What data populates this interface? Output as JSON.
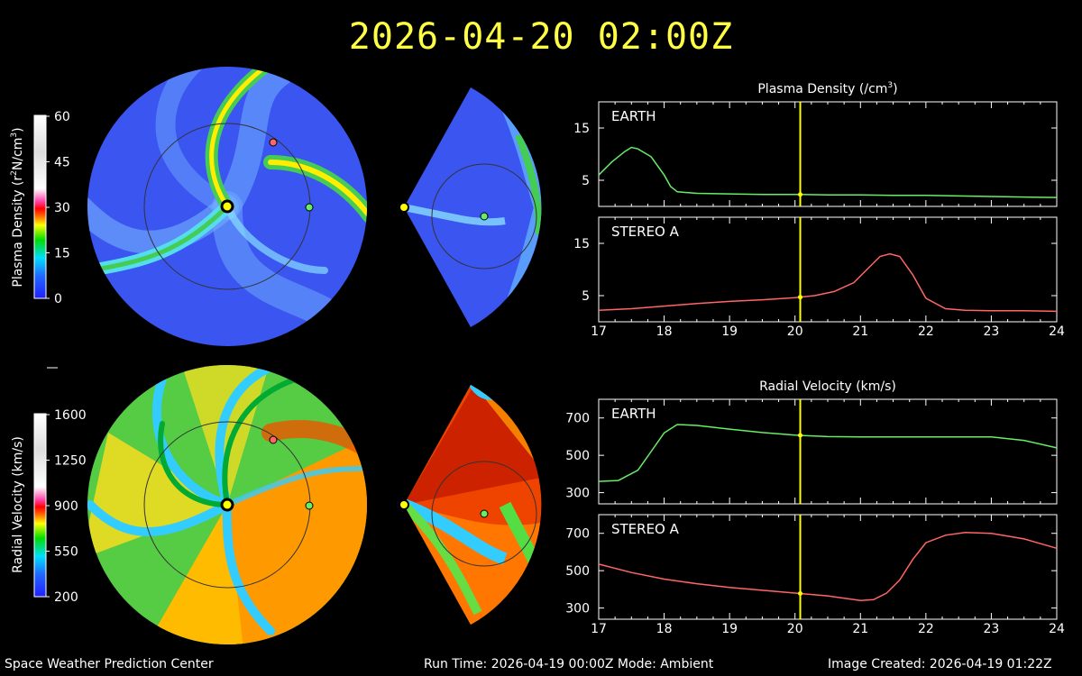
{
  "title": "2026-04-20  02:00Z",
  "footer": {
    "org": "Space Weather Prediction Center",
    "run": "Run Time: 2026-04-19 00:00Z  Mode: Ambient",
    "created": "Image Created: 2026-04-19 01:22Z"
  },
  "colorbars": {
    "density": {
      "label_main": "Plasma Density (r",
      "label_sup": "2",
      "label_end": "N/cm",
      "label_sup2": "3",
      "label_close": ")",
      "ticks": [
        "0",
        "15",
        "30",
        "45",
        "60"
      ]
    },
    "velocity": {
      "label": "Radial Velocity (km/s)",
      "ticks": [
        "200",
        "550",
        "900",
        "1250",
        "1600"
      ]
    }
  },
  "colors": {
    "earth": "#66ee66",
    "stereo": "#ff6666",
    "sun": "#ffff00",
    "marker": "#ffff00",
    "title": "#ffff44"
  },
  "chart_data": [
    {
      "type": "line",
      "title": "Plasma Density (/cm",
      "title_sup": "3",
      "title_close": ")",
      "xlim": [
        17,
        24
      ],
      "x_ticks": [
        "17",
        "18",
        "19",
        "20",
        "21",
        "22",
        "23",
        "24"
      ],
      "marker_x": 20.08,
      "panels": [
        {
          "label": "EARTH",
          "ylim": [
            0,
            20
          ],
          "y_ticks": [
            5,
            15
          ],
          "series": {
            "color": "#66ee66",
            "x": [
              17.0,
              17.2,
              17.4,
              17.5,
              17.6,
              17.8,
              18.0,
              18.1,
              18.2,
              18.5,
              19.0,
              19.5,
              20.0,
              20.5,
              21.0,
              21.5,
              22.0,
              22.5,
              23.0,
              23.5,
              24.0
            ],
            "y": [
              6,
              8.5,
              10.5,
              11.3,
              11,
              9.5,
              6,
              3.8,
              2.8,
              2.5,
              2.4,
              2.3,
              2.3,
              2.2,
              2.2,
              2.1,
              2.1,
              2.0,
              1.9,
              1.8,
              1.7
            ]
          }
        },
        {
          "label": "STEREO A",
          "ylim": [
            0,
            20
          ],
          "y_ticks": [
            5,
            15
          ],
          "series": {
            "color": "#ff6666",
            "x": [
              17.0,
              17.5,
              18.0,
              18.5,
              19.0,
              19.5,
              20.0,
              20.3,
              20.6,
              20.9,
              21.1,
              21.3,
              21.45,
              21.6,
              21.8,
              22.0,
              22.3,
              22.6,
              23.0,
              23.5,
              24.0
            ],
            "y": [
              2.2,
              2.5,
              3.0,
              3.5,
              3.9,
              4.2,
              4.6,
              5.0,
              5.8,
              7.5,
              10,
              12.5,
              13,
              12.5,
              9,
              4.5,
              2.5,
              2.2,
              2.1,
              2.1,
              2.0
            ]
          }
        }
      ]
    },
    {
      "type": "line",
      "title": "Radial Velocity (km/s)",
      "xlim": [
        17,
        24
      ],
      "x_ticks": [
        "17",
        "18",
        "19",
        "20",
        "21",
        "22",
        "23",
        "24"
      ],
      "marker_x": 20.08,
      "panels": [
        {
          "label": "EARTH",
          "ylim": [
            240,
            800
          ],
          "y_ticks": [
            300,
            500,
            700
          ],
          "series": {
            "color": "#66ee66",
            "x": [
              17.0,
              17.3,
              17.6,
              17.8,
              18.0,
              18.2,
              18.5,
              19.0,
              19.5,
              20.0,
              20.5,
              21.0,
              21.5,
              22.0,
              22.5,
              23.0,
              23.5,
              24.0
            ],
            "y": [
              360,
              365,
              420,
              520,
              620,
              665,
              660,
              640,
              622,
              608,
              600,
              598,
              598,
              598,
              598,
              598,
              580,
              540
            ]
          }
        },
        {
          "label": "STEREO A",
          "ylim": [
            240,
            800
          ],
          "y_ticks": [
            300,
            500,
            700
          ],
          "series": {
            "color": "#ff6666",
            "x": [
              17.0,
              17.5,
              18.0,
              18.5,
              19.0,
              19.5,
              20.0,
              20.5,
              21.0,
              21.2,
              21.4,
              21.6,
              21.8,
              22.0,
              22.3,
              22.6,
              23.0,
              23.5,
              24.0
            ],
            "y": [
              535,
              490,
              455,
              430,
              410,
              395,
              380,
              365,
              340,
              345,
              380,
              450,
              560,
              650,
              690,
              705,
              700,
              670,
              620
            ]
          }
        }
      ]
    }
  ]
}
